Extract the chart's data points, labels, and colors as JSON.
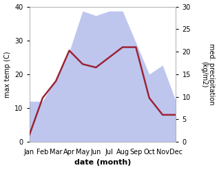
{
  "months": [
    "Jan",
    "Feb",
    "Mar",
    "Apr",
    "May",
    "Jun",
    "Jul",
    "Aug",
    "Sep",
    "Oct",
    "Nov",
    "Dec"
  ],
  "temperature": [
    2,
    13,
    18,
    27,
    23,
    22,
    25,
    28,
    28,
    13,
    8,
    8
  ],
  "precipitation": [
    9,
    9,
    14,
    20,
    29,
    28,
    29,
    29,
    22,
    15,
    17,
    9
  ],
  "temp_color": "#9b2335",
  "precip_color_fill": "#b3bcec",
  "ylabel_left": "max temp (C)",
  "ylabel_right": "med. precipitation\n(kg/m2)",
  "xlabel": "date (month)",
  "ylim_left": [
    0,
    40
  ],
  "ylim_right": [
    0,
    30
  ],
  "yticks_left": [
    0,
    10,
    20,
    30,
    40
  ],
  "yticks_right": [
    0,
    5,
    10,
    15,
    20,
    25,
    30
  ],
  "background_color": "#ffffff",
  "label_fontsize": 8,
  "tick_fontsize": 7
}
